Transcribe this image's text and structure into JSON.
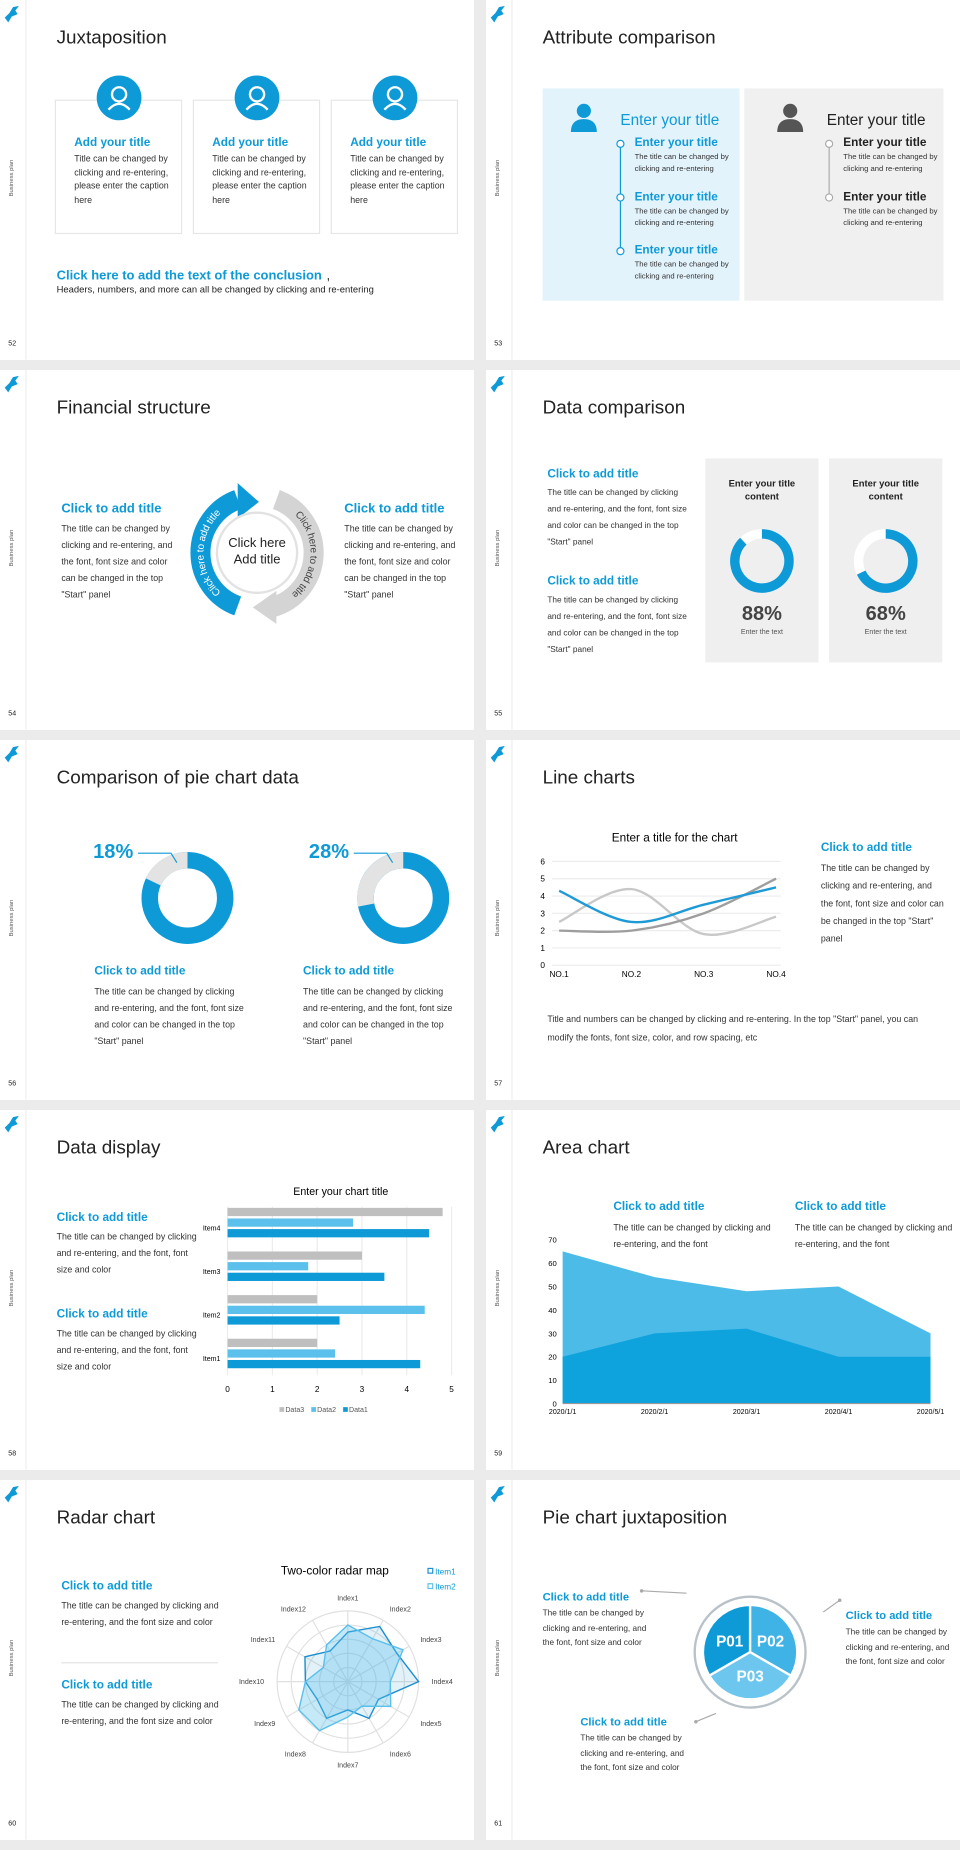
{
  "slides": [
    {
      "number": 52,
      "sidebar": "Business plan",
      "title": "Juxtaposition",
      "cards": [
        {
          "heading": "Add your title",
          "text": "Title can be changed by clicking and re-entering, please enter the caption here"
        },
        {
          "heading": "Add your title",
          "text": "Title can be changed by clicking and re-entering, please enter the caption here"
        },
        {
          "heading": "Add your title",
          "text": "Title can be changed by clicking and re-entering, please enter the caption here"
        }
      ],
      "conclusion": "Click here to add the text of the conclusion",
      "conclusion_end": ",",
      "note": "Headers, numbers, and more can all be changed by clicking and re-entering"
    },
    {
      "number": 53,
      "sidebar": "Business plan",
      "title": "Attribute comparison",
      "panels": [
        {
          "heading": "Enter your title",
          "items": [
            {
              "heading": "Enter your title",
              "text": "The title can be changed by clicking and re-entering"
            },
            {
              "heading": "Enter your title",
              "text": "The title can be changed by clicking and re-entering"
            },
            {
              "heading": "Enter your title",
              "text": "The title can be changed by clicking and re-entering"
            }
          ]
        },
        {
          "heading": "Enter your title",
          "items": [
            {
              "heading": "Enter your title",
              "text": "The title can be changed by clicking and re-entering"
            },
            {
              "heading": "Enter your title",
              "text": "The title can be changed by clicking and re-entering"
            }
          ]
        }
      ]
    },
    {
      "number": 54,
      "sidebar": "Business plan",
      "title": "Financial structure",
      "left": {
        "heading": "Click to add title",
        "text": "The title can be changed by clicking and re-entering, and the font, font size and color can be changed in the top \"Start\" panel"
      },
      "right": {
        "heading": "Click to add title",
        "text": "The title can be changed by clicking and re-entering, and the font, font size and color can be changed in the top \"Start\" panel"
      },
      "center": "Click here Add title",
      "ring": [
        "Click here to add title",
        "Click here to add title"
      ]
    },
    {
      "number": 55,
      "sidebar": "Business plan",
      "title": "Data comparison",
      "items": [
        {
          "heading": "Click to add title",
          "text": "The title can be changed by clicking and re-entering, and the font, font size and color can be changed in the top \"Start\" panel"
        },
        {
          "heading": "Click to add title",
          "text": "The title can be changed by clicking and re-entering, and the font, font size and color can be changed in the top \"Start\" panel"
        }
      ],
      "boxes": [
        {
          "heading": "Enter your title content",
          "value": {
            "value": 88,
            "label": "88%"
          },
          "caption": "Enter the text"
        },
        {
          "heading": "Enter your title content",
          "value": {
            "value": 68,
            "label": "68%"
          },
          "caption": "Enter the text"
        }
      ]
    },
    {
      "number": 56,
      "sidebar": "Business plan",
      "title": "Comparison of pie chart data",
      "items": [
        {
          "value": {
            "value": 18,
            "label": "18%"
          },
          "heading": "Click to add title",
          "text": "The title can be changed by clicking and re-entering, and the font, font size and color can be changed in the top \"Start\" panel"
        },
        {
          "value": {
            "value": 28,
            "label": "28%"
          },
          "heading": "Click to add title",
          "text": "The title can be changed by clicking and re-entering, and the font, font size and color can be changed in the top \"Start\" panel"
        }
      ]
    },
    {
      "number": 57,
      "sidebar": "Business plan",
      "title": "Line charts",
      "chart": {
        "type": "line",
        "title": "Enter a title for the chart",
        "categories": [
          "NO.1",
          "NO.2",
          "NO.3",
          "NO.4"
        ],
        "series": [
          {
            "color": "#c8c8c8",
            "values": [
              2.5,
              4.4,
              1.8,
              2.8
            ]
          },
          {
            "color": "#9e9e9e",
            "values": [
              2,
              2,
              3,
              5
            ]
          },
          {
            "color": "#1e9ad6",
            "values": [
              4.3,
              2.5,
              3.5,
              4.5
            ]
          }
        ],
        "ylim": [
          0,
          6
        ],
        "yticks": [
          0,
          1,
          2,
          3,
          4,
          5,
          6
        ],
        "grid": true
      },
      "side": {
        "heading": "Click to add title",
        "text": "The title can be changed by clicking and re-entering, and the font, font size and color can be changed in the top \"Start\" panel"
      },
      "note": "Title and numbers can be changed by clicking and re-entering. In the top \"Start\" panel, you can modify the fonts, font size, color, and row spacing, etc"
    },
    {
      "number": 58,
      "sidebar": "Business plan",
      "title": "Data display",
      "items": [
        {
          "heading": "Click to add title",
          "text": "The title can be changed by clicking and re-entering, and the font, font size and color"
        },
        {
          "heading": "Click to add title",
          "text": "The title can be changed by clicking and re-entering, and the font, font size and color"
        }
      ],
      "chart": {
        "type": "bar",
        "orientation": "horizontal",
        "title": "Enter your chart title",
        "categories": [
          "Item1",
          "Item2",
          "Item3",
          "Item4"
        ],
        "series": [
          {
            "name": "Data1",
            "color": "#0e9ad7",
            "values": [
              4.3,
              2.5,
              3.5,
              4.5
            ]
          },
          {
            "name": "Data2",
            "color": "#5bc0eb",
            "values": [
              2.4,
              4.4,
              1.8,
              2.8
            ]
          },
          {
            "name": "Data3",
            "color": "#bfbfbf",
            "values": [
              2,
              2,
              3,
              4.8
            ]
          }
        ],
        "xlim": [
          0,
          5
        ],
        "xticks": [
          0,
          1,
          2,
          3,
          4,
          5
        ],
        "grid": true
      }
    },
    {
      "number": 59,
      "sidebar": "Business plan",
      "title": "Area chart",
      "items": [
        {
          "heading": "Click to add title",
          "text": "The title can be changed by clicking and re-entering, and the font"
        },
        {
          "heading": "Click to add title",
          "text": "The title can be changed by clicking and re-entering, and the font"
        }
      ],
      "chart": {
        "type": "area",
        "categories": [
          "2020/1/1",
          "2020/2/1",
          "2020/3/1",
          "2020/4/1",
          "2020/5/1"
        ],
        "series": [
          {
            "color": "#4dbbe8",
            "values": [
              65,
              54,
              48,
              50,
              30
            ]
          },
          {
            "color": "#0ea3dd",
            "values": [
              20,
              30,
              32,
              20,
              20
            ]
          }
        ],
        "ylim": [
          0,
          70
        ],
        "yticks": [
          0,
          10,
          20,
          30,
          40,
          50,
          60,
          70
        ]
      }
    },
    {
      "number": 60,
      "sidebar": "Business plan",
      "title": "Radar chart",
      "items": [
        {
          "heading": "Click to add title",
          "text": "The title can be changed by clicking and re-entering, and the font size and color"
        },
        {
          "heading": "Click to add title",
          "text": "The title can be changed by clicking and re-entering, and the font size and color"
        }
      ],
      "chart": {
        "type": "radar",
        "title": "Two-color radar map",
        "categories": [
          "Index1",
          "Index2",
          "Index3",
          "Index4",
          "Index5",
          "Index6",
          "Index7",
          "Index8",
          "Index9",
          "Index10",
          "Index11",
          "Index12"
        ],
        "series": [
          {
            "name": "Item1",
            "color": "#1a8fcf",
            "values": [
              3.5,
              4.5,
              4,
              5,
              2.5,
              3,
              2,
              3,
              2.5,
              3,
              3.5,
              2.5
            ]
          },
          {
            "name": "Item2",
            "color": "#5bc0eb",
            "values": [
              4,
              3.5,
              4.5,
              3,
              3.5,
              2,
              2.5,
              4,
              4,
              3,
              2,
              3
            ]
          }
        ],
        "rlim": [
          0,
          5
        ],
        "rticks": [
          1,
          2,
          3,
          4,
          5
        ]
      }
    },
    {
      "number": 61,
      "sidebar": "Business plan",
      "title": "Pie chart juxtaposition",
      "segments": [
        "P01",
        "P02",
        "P03"
      ],
      "items": [
        {
          "heading": "Click to add title",
          "text": "The title can be changed by clicking and re-entering, and the font, font size and color"
        },
        {
          "heading": "Click to add title",
          "text": "The title can be changed by clicking and re-entering, and the font, font size and color"
        },
        {
          "heading": "Click to add title",
          "text": "The title can be changed by clicking and re-entering, and the font, font size and color"
        }
      ]
    }
  ]
}
